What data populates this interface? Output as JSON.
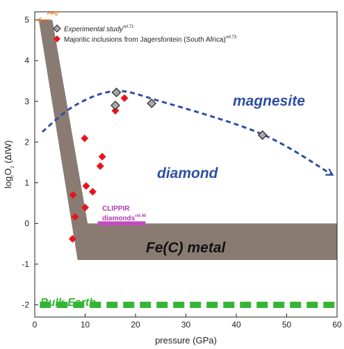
{
  "chart_data": {
    "type": "scatter",
    "xlabel": "pressure (GPa)",
    "ylabel_main": "log",
    "ylabel_sub": "O",
    "ylabel_tail": "2",
    "ylabel_paren": " (ΔIW)",
    "xlim": [
      0,
      60
    ],
    "ylim": [
      -2.3,
      5.2
    ],
    "xticks": [
      0,
      10,
      20,
      30,
      40,
      50,
      60
    ],
    "yticks": [
      -2,
      -1,
      0,
      1,
      2,
      3,
      4,
      5
    ],
    "legend_position": "top-right",
    "series": [
      {
        "name": "Experimental study",
        "ref": "ref.71",
        "marker": "diamond",
        "color": "#a9a9a9",
        "points": [
          [
            16.2,
            3.22
          ],
          [
            16.0,
            2.9
          ],
          [
            23.2,
            2.95
          ],
          [
            45.2,
            2.17
          ]
        ]
      },
      {
        "name": "Majoritic inclusions from Jagersfontein (South Africa)",
        "ref": "ref.73",
        "marker": "diamond",
        "color": "#e8141c",
        "points": [
          [
            17.8,
            3.08
          ],
          [
            16.0,
            2.77
          ],
          [
            9.9,
            2.09
          ],
          [
            13.4,
            1.64
          ],
          [
            13.0,
            1.41
          ],
          [
            10.2,
            0.92
          ],
          [
            11.5,
            0.78
          ],
          [
            7.6,
            0.7
          ],
          [
            10.0,
            0.39
          ],
          [
            8.0,
            0.16
          ],
          [
            7.5,
            -0.38
          ]
        ]
      }
    ],
    "annotations": {
      "fmq": "FMQ",
      "magnesite": "magnesite",
      "diamond": "diamond",
      "metal": "Fe(C) metal",
      "bulk_earth": "Bulk Earth",
      "clippir_1": "CLIPPIR",
      "clippir_2": "diamonds",
      "clippir_ref": "ref.40"
    },
    "regions": {
      "metal_band": [
        [
          0.8,
          5.0
        ],
        [
          3.5,
          5.0
        ],
        [
          10.5,
          0.0
        ],
        [
          60,
          0.0
        ],
        [
          60,
          -0.9
        ],
        [
          8.5,
          -0.9
        ]
      ],
      "clippir_bar": {
        "x": [
          12.5,
          22.0
        ],
        "y": 0.0
      },
      "bulk_earth_line": {
        "x": [
          1.0,
          60.0
        ],
        "y": -2.0
      },
      "trend_curve": [
        [
          1.5,
          2.25
        ],
        [
          8,
          2.9
        ],
        [
          16,
          3.25
        ],
        [
          25,
          3.0
        ],
        [
          45,
          2.2
        ],
        [
          59,
          1.2
        ]
      ]
    },
    "colors": {
      "metal": "#8a7b72",
      "trend": "#2f4f9f",
      "clippir": "#c24ac0",
      "bulk_earth": "#35b535",
      "fmq": "#e8711c"
    }
  }
}
